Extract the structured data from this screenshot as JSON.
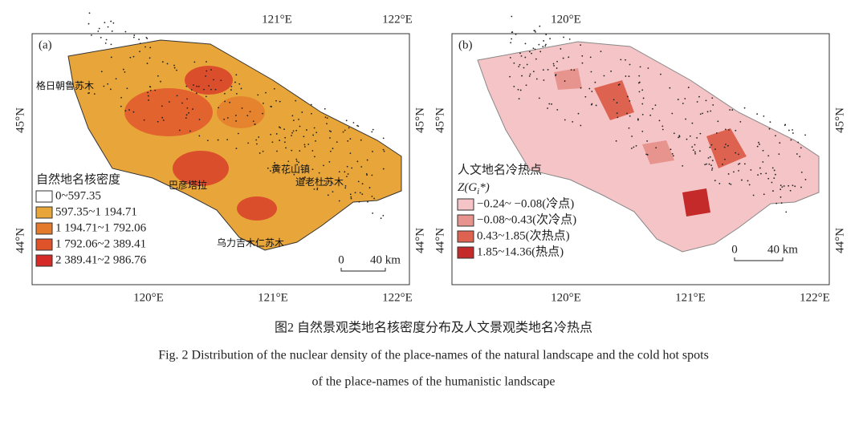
{
  "panels": [
    {
      "label": "(a)",
      "top_axis": [
        "121°E",
        "122°E"
      ],
      "bottom_axis": [
        "120°E",
        "121°E",
        "122°E"
      ],
      "left_axis": [
        "45°N",
        "44°N"
      ],
      "right_axis": [
        "45°N",
        "44°N"
      ],
      "legend": {
        "title": "自然地名核密度",
        "items": [
          {
            "label": "0~597.35",
            "color": "#ffffff"
          },
          {
            "label": "597.35~1 194.71",
            "color": "#e8a63a"
          },
          {
            "label": "1 194.71~1 792.06",
            "color": "#e47b2c"
          },
          {
            "label": "1 792.06~2 389.41",
            "color": "#e0522a"
          },
          {
            "label": "2 389.41~2 986.76",
            "color": "#d62a26"
          }
        ]
      },
      "scale": [
        "0",
        "40 km"
      ],
      "place_names": [
        "格日朝鲁苏木",
        "巴彦塔拉",
        "黄花山镇",
        "道老杜苏木",
        "乌力吉木仁苏木"
      ]
    },
    {
      "label": "(b)",
      "top_axis": [
        "120°E"
      ],
      "bottom_axis": [
        "120°E",
        "121°E",
        "122°E"
      ],
      "left_axis": [
        "45°N",
        "44°N"
      ],
      "right_axis": [
        "45°N",
        "44°N"
      ],
      "legend": {
        "title": "人文地名冷热点",
        "subtitle": {
          "pre": "Z(G",
          "sub": "i",
          "post": "*)"
        },
        "items": [
          {
            "label": "−0.24~ −0.08(冷点)",
            "color": "#f4c4c6"
          },
          {
            "label": "−0.08~0.43(次冷点)",
            "color": "#e8948e"
          },
          {
            "label": "0.43~1.85(次热点)",
            "color": "#de6250"
          },
          {
            "label": "1.85~14.36(热点)",
            "color": "#c42a2a"
          }
        ]
      },
      "scale": [
        "0",
        "40 km"
      ]
    }
  ],
  "caption": {
    "zh": "图2  自然景观类地名核密度分布及人文景观类地名冷热点",
    "en": [
      "Fig. 2   Distribution of the nuclear density of the place-names of the natural landscape and the cold hot spots",
      "of the place-names of the humanistic landscape"
    ]
  }
}
